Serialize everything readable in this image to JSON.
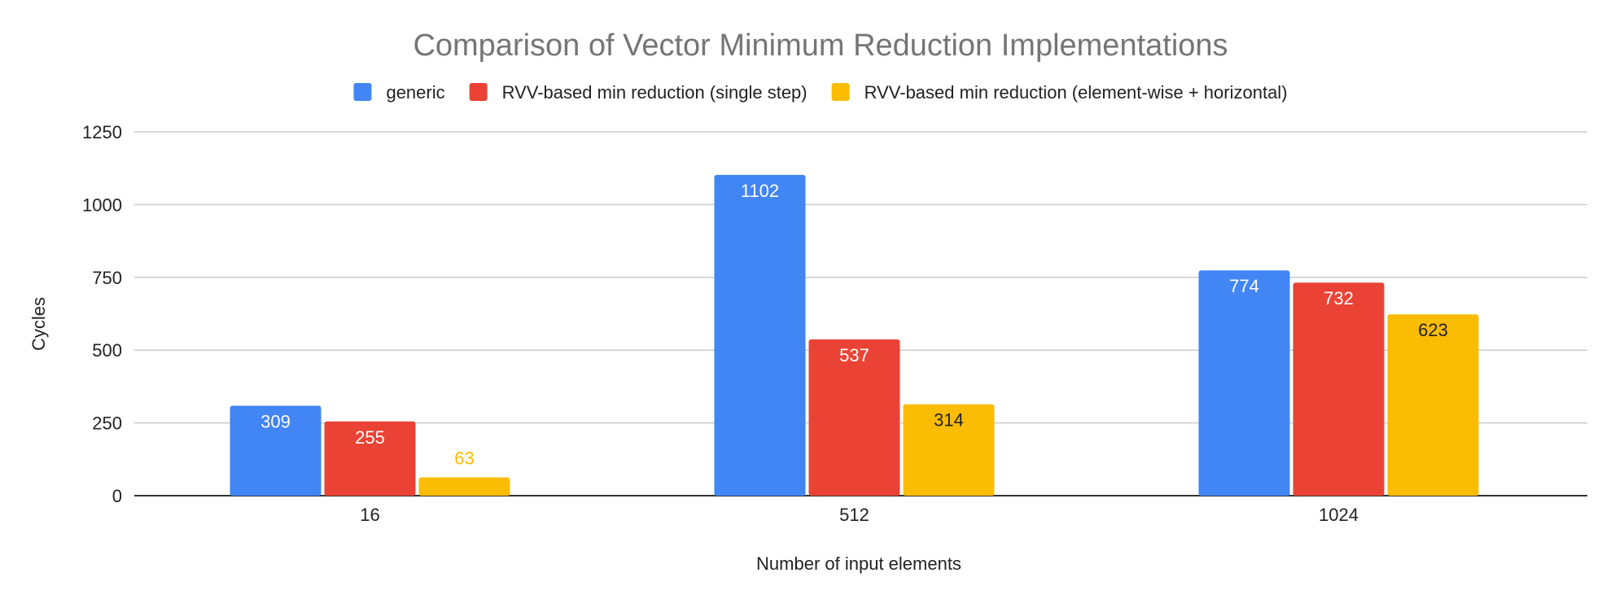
{
  "chart_data": {
    "type": "bar",
    "title": "Comparison of Vector Minimum Reduction Implementations",
    "xlabel": "Number of input elements",
    "ylabel": "Cycles",
    "categories": [
      "16",
      "512",
      "1024"
    ],
    "ylim": [
      0,
      1250
    ],
    "yticks": [
      0,
      250,
      500,
      750,
      1000,
      1250
    ],
    "grid": true,
    "legend_position": "top",
    "series": [
      {
        "name": "generic",
        "color": "#4285F4",
        "values": [
          309,
          1102,
          774
        ],
        "label_colors": [
          "#ffffff",
          "#ffffff",
          "#ffffff"
        ]
      },
      {
        "name": "RVV-based min reduction (single step)",
        "color": "#EA4335",
        "values": [
          255,
          537,
          732
        ],
        "label_colors": [
          "#ffffff",
          "#ffffff",
          "#ffffff"
        ]
      },
      {
        "name": "RVV-based min reduction (element-wise + horizontal)",
        "color": "#FBBC04",
        "values": [
          63,
          314,
          623
        ],
        "label_colors": [
          "#FBBC04",
          "#222222",
          "#222222"
        ]
      }
    ]
  }
}
